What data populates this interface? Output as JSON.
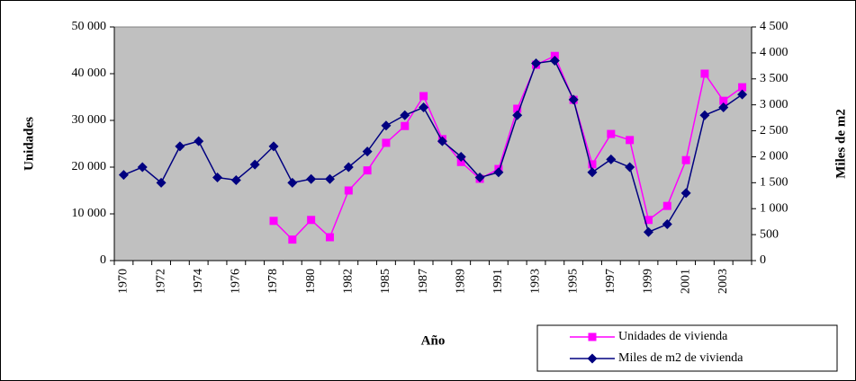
{
  "chart_data": {
    "type": "line",
    "xlabel": "Año",
    "ylabel": "Unidades",
    "y2label": "Miles de m2",
    "categories": [
      "1970",
      null,
      "1972",
      null,
      "1974",
      null,
      "1976",
      null,
      "1978",
      null,
      "1980",
      null,
      "1982",
      null,
      "1985",
      null,
      "1987",
      null,
      "1989",
      null,
      "1991",
      null,
      "1993",
      null,
      "1995",
      null,
      "1997",
      null,
      "1999",
      null,
      "2001",
      null,
      "2003",
      null
    ],
    "series": [
      {
        "name": "Unidades de vivienda",
        "color": "#ff00ff",
        "marker": "square",
        "values": [
          null,
          null,
          null,
          null,
          null,
          null,
          null,
          null,
          8500,
          4500,
          8700,
          5000,
          15000,
          19300,
          25200,
          28800,
          35200,
          26000,
          21100,
          17500,
          19600,
          32500,
          41900,
          43800,
          34400,
          20600,
          27100,
          25800,
          8700,
          11700,
          21500,
          40000,
          34200,
          37100
        ]
      },
      {
        "name": "Miles de m2 de vivienda",
        "color": "#000080",
        "marker": "diamond",
        "axis": "y2",
        "values": [
          1650,
          1800,
          1500,
          2200,
          2300,
          1600,
          1550,
          1850,
          2200,
          1500,
          1570,
          1570,
          1800,
          2100,
          2600,
          2800,
          2950,
          2300,
          2000,
          1600,
          1700,
          2800,
          3800,
          3850,
          3100,
          1700,
          1950,
          1800,
          550,
          700,
          1300,
          2800,
          2950,
          3200
        ]
      }
    ],
    "ylim": [
      0,
      50000
    ],
    "yticks": [
      0,
      {
        "value": 10000,
        "label": "10 000"
      },
      {
        "value": 20000,
        "label": "20 000"
      },
      {
        "value": 30000,
        "label": "30 000"
      },
      {
        "value": 40000,
        "label": "40 000"
      },
      {
        "value": 50000,
        "label": "50 000"
      }
    ],
    "y2lim": [
      0,
      4500
    ],
    "y2ticks": [
      0,
      500,
      {
        "value": 1000,
        "label": "1 000"
      },
      {
        "value": 1500,
        "label": "1 500"
      },
      {
        "value": 2000,
        "label": "2 000"
      },
      {
        "value": 2500,
        "label": "2 500"
      },
      {
        "value": 3000,
        "label": "3 000"
      },
      {
        "value": 3500,
        "label": "3 500"
      },
      {
        "value": 4000,
        "label": "4 000"
      },
      {
        "value": 4500,
        "label": "4 500"
      }
    ],
    "plot_background": "#c0c0c0",
    "legend": "bottom-right"
  }
}
